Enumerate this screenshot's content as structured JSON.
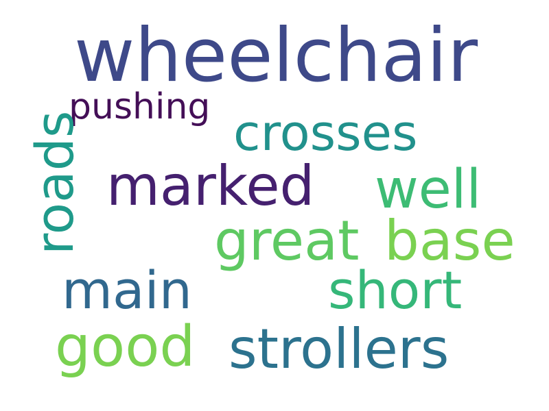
{
  "word_cloud": {
    "words": [
      {
        "id": "w-wheelchair",
        "text": "wheelchair",
        "color": "#3e4989"
      },
      {
        "id": "w-pushing",
        "text": "pushing",
        "color": "#440f57"
      },
      {
        "id": "w-crosses",
        "text": "crosses",
        "color": "#21918c"
      },
      {
        "id": "w-roads",
        "text": "roads",
        "color": "#1f9a8a"
      },
      {
        "id": "w-marked",
        "text": "marked",
        "color": "#45206f"
      },
      {
        "id": "w-well",
        "text": "well",
        "color": "#3dbc74"
      },
      {
        "id": "w-great",
        "text": "great",
        "color": "#5ec962"
      },
      {
        "id": "w-base",
        "text": "base",
        "color": "#7ad151"
      },
      {
        "id": "w-main",
        "text": "main",
        "color": "#31688e"
      },
      {
        "id": "w-short",
        "text": "short",
        "color": "#35b779"
      },
      {
        "id": "w-good",
        "text": "good",
        "color": "#7ad151"
      },
      {
        "id": "w-strollers",
        "text": "strollers",
        "color": "#2c728e"
      }
    ]
  }
}
